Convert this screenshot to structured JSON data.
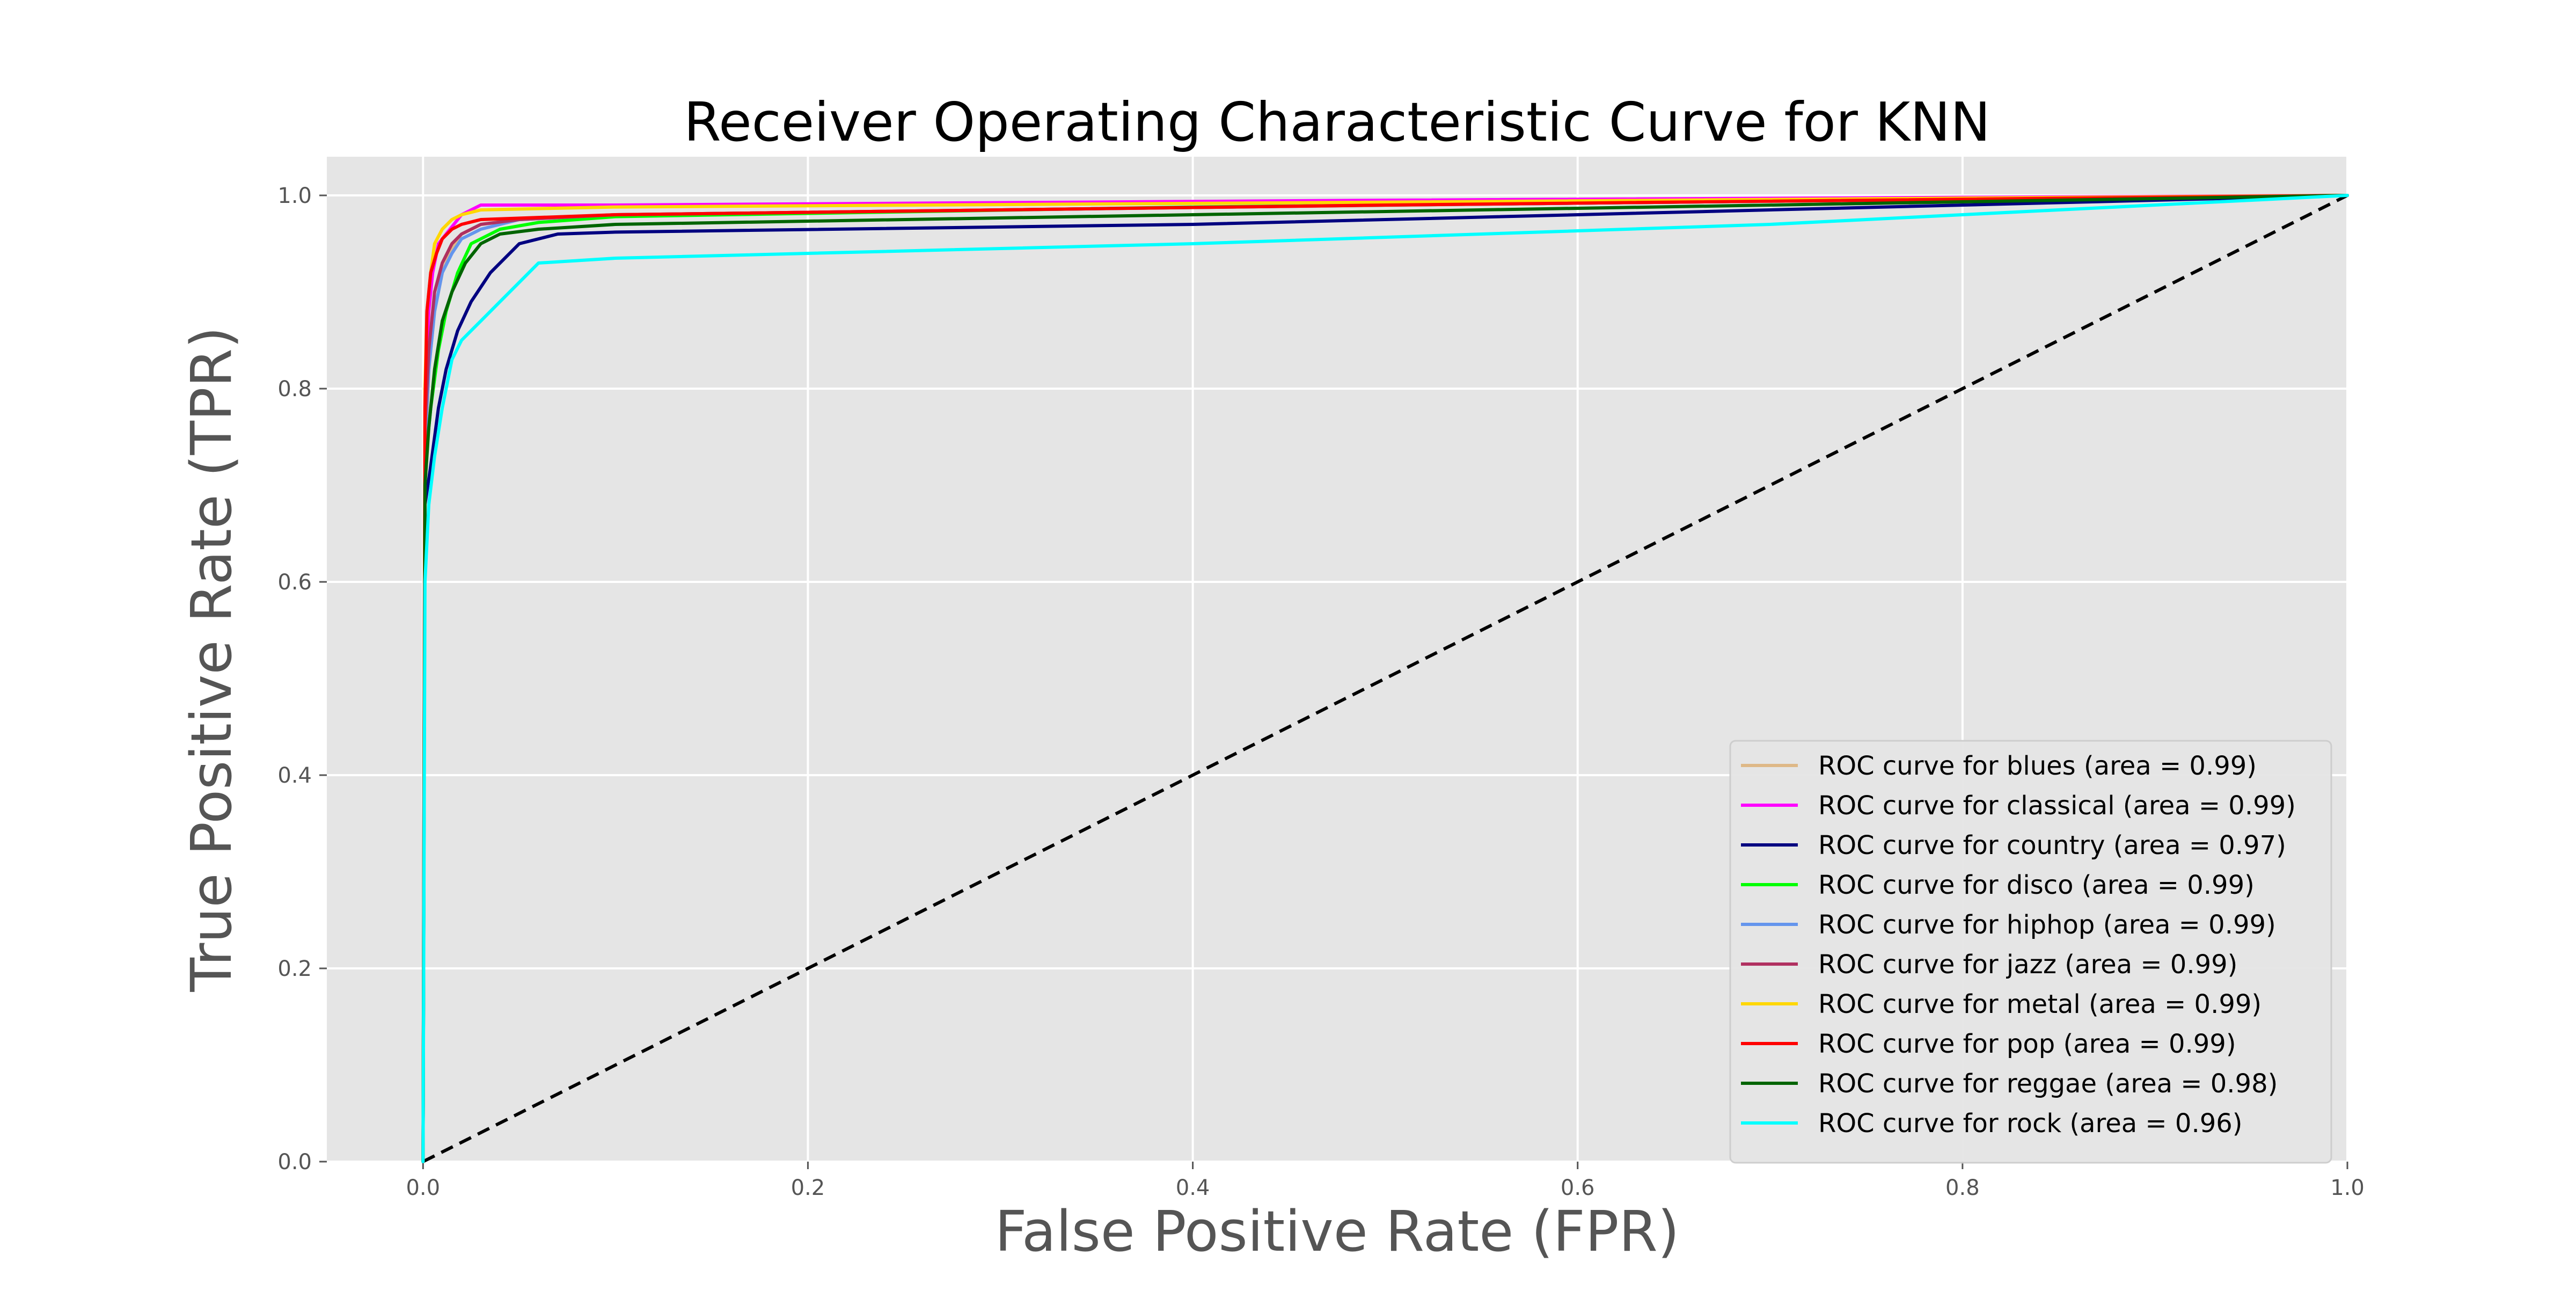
{
  "chart_data": {
    "type": "line",
    "title": "Receiver Operating Characteristic Curve for KNN",
    "xlabel": "False Positive Rate (FPR)",
    "ylabel": "True Positive Rate (TPR)",
    "xlim": [
      -0.05,
      1.0
    ],
    "ylim": [
      0.0,
      1.04
    ],
    "xticks": [
      0.0,
      0.2,
      0.4,
      0.6,
      0.8,
      1.0
    ],
    "yticks": [
      0.0,
      0.2,
      0.4,
      0.6,
      0.8,
      1.0
    ],
    "xtick_labels": [
      "0.0",
      "0.2",
      "0.4",
      "0.6",
      "0.8",
      "1.0"
    ],
    "ytick_labels": [
      "0.0",
      "0.2",
      "0.4",
      "0.6",
      "0.8",
      "1.0"
    ],
    "grid": true,
    "background": "#e5e5e5",
    "legend_position": "lower right",
    "reference_line": {
      "x": [
        0.0,
        1.0
      ],
      "y": [
        0.0,
        1.0
      ],
      "color": "#000000",
      "style": "dashed"
    },
    "series": [
      {
        "name": "ROC curve for blues (area = 0.99)",
        "color": "#deb887",
        "x": [
          0,
          0.001,
          0.003,
          0.006,
          0.01,
          0.015,
          0.02,
          0.03,
          0.05,
          0.1,
          0.3,
          0.6,
          1.0
        ],
        "y": [
          0,
          0.7,
          0.82,
          0.88,
          0.92,
          0.945,
          0.96,
          0.97,
          0.975,
          0.98,
          0.985,
          0.992,
          1.0
        ]
      },
      {
        "name": "ROC curve for classical (area = 0.99)",
        "color": "#ff00ff",
        "x": [
          0,
          0.001,
          0.003,
          0.005,
          0.008,
          0.012,
          0.016,
          0.02,
          0.025,
          0.03,
          0.1,
          0.5,
          1.0
        ],
        "y": [
          0,
          0.8,
          0.88,
          0.92,
          0.95,
          0.96,
          0.97,
          0.98,
          0.985,
          0.99,
          0.99,
          0.995,
          1.0
        ]
      },
      {
        "name": "ROC curve for country (area = 0.97)",
        "color": "#000080",
        "x": [
          0,
          0.001,
          0.004,
          0.008,
          0.012,
          0.018,
          0.025,
          0.035,
          0.05,
          0.07,
          0.1,
          0.4,
          0.7,
          1.0
        ],
        "y": [
          0,
          0.68,
          0.72,
          0.78,
          0.82,
          0.86,
          0.89,
          0.92,
          0.95,
          0.96,
          0.962,
          0.97,
          0.985,
          1.0
        ]
      },
      {
        "name": "ROC curve for disco (area = 0.99)",
        "color": "#00ff00",
        "x": [
          0,
          0.001,
          0.004,
          0.008,
          0.012,
          0.018,
          0.025,
          0.04,
          0.06,
          0.1,
          0.4,
          1.0
        ],
        "y": [
          0,
          0.72,
          0.78,
          0.84,
          0.88,
          0.92,
          0.95,
          0.965,
          0.972,
          0.978,
          0.988,
          1.0
        ]
      },
      {
        "name": "ROC curve for hiphop (area = 0.99)",
        "color": "#6495ed",
        "x": [
          0,
          0.001,
          0.003,
          0.006,
          0.01,
          0.015,
          0.02,
          0.03,
          0.05,
          0.1,
          0.5,
          1.0
        ],
        "y": [
          0,
          0.74,
          0.82,
          0.88,
          0.92,
          0.94,
          0.955,
          0.965,
          0.975,
          0.98,
          0.99,
          1.0
        ]
      },
      {
        "name": "ROC curve for jazz (area = 0.99)",
        "color": "#b03060",
        "x": [
          0,
          0.001,
          0.003,
          0.006,
          0.01,
          0.015,
          0.02,
          0.03,
          0.05,
          0.1,
          0.5,
          1.0
        ],
        "y": [
          0,
          0.76,
          0.84,
          0.9,
          0.93,
          0.95,
          0.96,
          0.97,
          0.975,
          0.98,
          0.99,
          1.0
        ]
      },
      {
        "name": "ROC curve for metal (area = 0.99)",
        "color": "#ffd700",
        "x": [
          0,
          0.001,
          0.002,
          0.004,
          0.006,
          0.01,
          0.015,
          0.02,
          0.03,
          0.1,
          0.5,
          1.0
        ],
        "y": [
          0,
          0.8,
          0.88,
          0.92,
          0.95,
          0.965,
          0.975,
          0.98,
          0.985,
          0.988,
          0.993,
          1.0
        ]
      },
      {
        "name": "ROC curve for pop (area = 0.99)",
        "color": "#ff0000",
        "x": [
          0,
          0.001,
          0.002,
          0.004,
          0.007,
          0.01,
          0.015,
          0.02,
          0.03,
          0.1,
          0.5,
          1.0
        ],
        "y": [
          0,
          0.78,
          0.88,
          0.92,
          0.94,
          0.955,
          0.965,
          0.97,
          0.975,
          0.98,
          0.99,
          1.0
        ]
      },
      {
        "name": "ROC curve for reggae (area = 0.98)",
        "color": "#006400",
        "x": [
          0,
          0.001,
          0.003,
          0.006,
          0.01,
          0.015,
          0.022,
          0.03,
          0.04,
          0.06,
          0.1,
          0.4,
          1.0
        ],
        "y": [
          0,
          0.7,
          0.76,
          0.82,
          0.87,
          0.9,
          0.93,
          0.95,
          0.96,
          0.965,
          0.97,
          0.98,
          1.0
        ]
      },
      {
        "name": "ROC curve for rock (area = 0.96)",
        "color": "#00ffff",
        "x": [
          0,
          0.001,
          0.003,
          0.006,
          0.01,
          0.015,
          0.02,
          0.025,
          0.03,
          0.04,
          0.05,
          0.06,
          0.1,
          0.4,
          0.7,
          1.0
        ],
        "y": [
          0,
          0.6,
          0.68,
          0.73,
          0.78,
          0.83,
          0.85,
          0.86,
          0.87,
          0.89,
          0.91,
          0.93,
          0.935,
          0.95,
          0.97,
          1.0
        ]
      }
    ]
  }
}
